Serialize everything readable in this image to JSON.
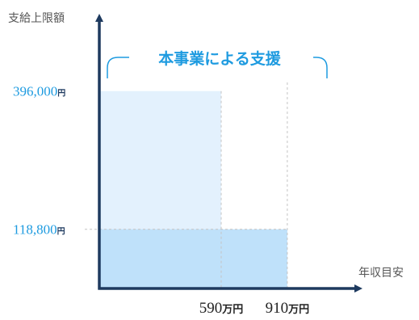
{
  "chart_data": {
    "type": "area",
    "title": "",
    "ylabel": "支給上限額",
    "xlabel": "年収目安",
    "x_ticks": [
      {
        "value": "590",
        "unit": "万円"
      },
      {
        "value": "910",
        "unit": "万円"
      }
    ],
    "y_ticks": [
      {
        "value": "396,000",
        "unit": "円"
      },
      {
        "value": "118,800",
        "unit": "円"
      }
    ],
    "regions": [
      {
        "x_from": 0,
        "x_to": 590,
        "y_max": 396000,
        "color": "#e3f1fd"
      },
      {
        "x_from": 0,
        "x_to": 910,
        "y_max": 118800,
        "color": "#bfe1fa"
      }
    ],
    "brace_label": "本事業による支援",
    "xlim": [
      0,
      1070
    ],
    "ylim": [
      0,
      555000
    ],
    "grid": false
  },
  "colors": {
    "axis": "#1e3a5f",
    "accent": "#1e9be0",
    "region_light": "#e3f1fd",
    "region_dark": "#bfe1fa",
    "guide": "#c4c4c4"
  }
}
